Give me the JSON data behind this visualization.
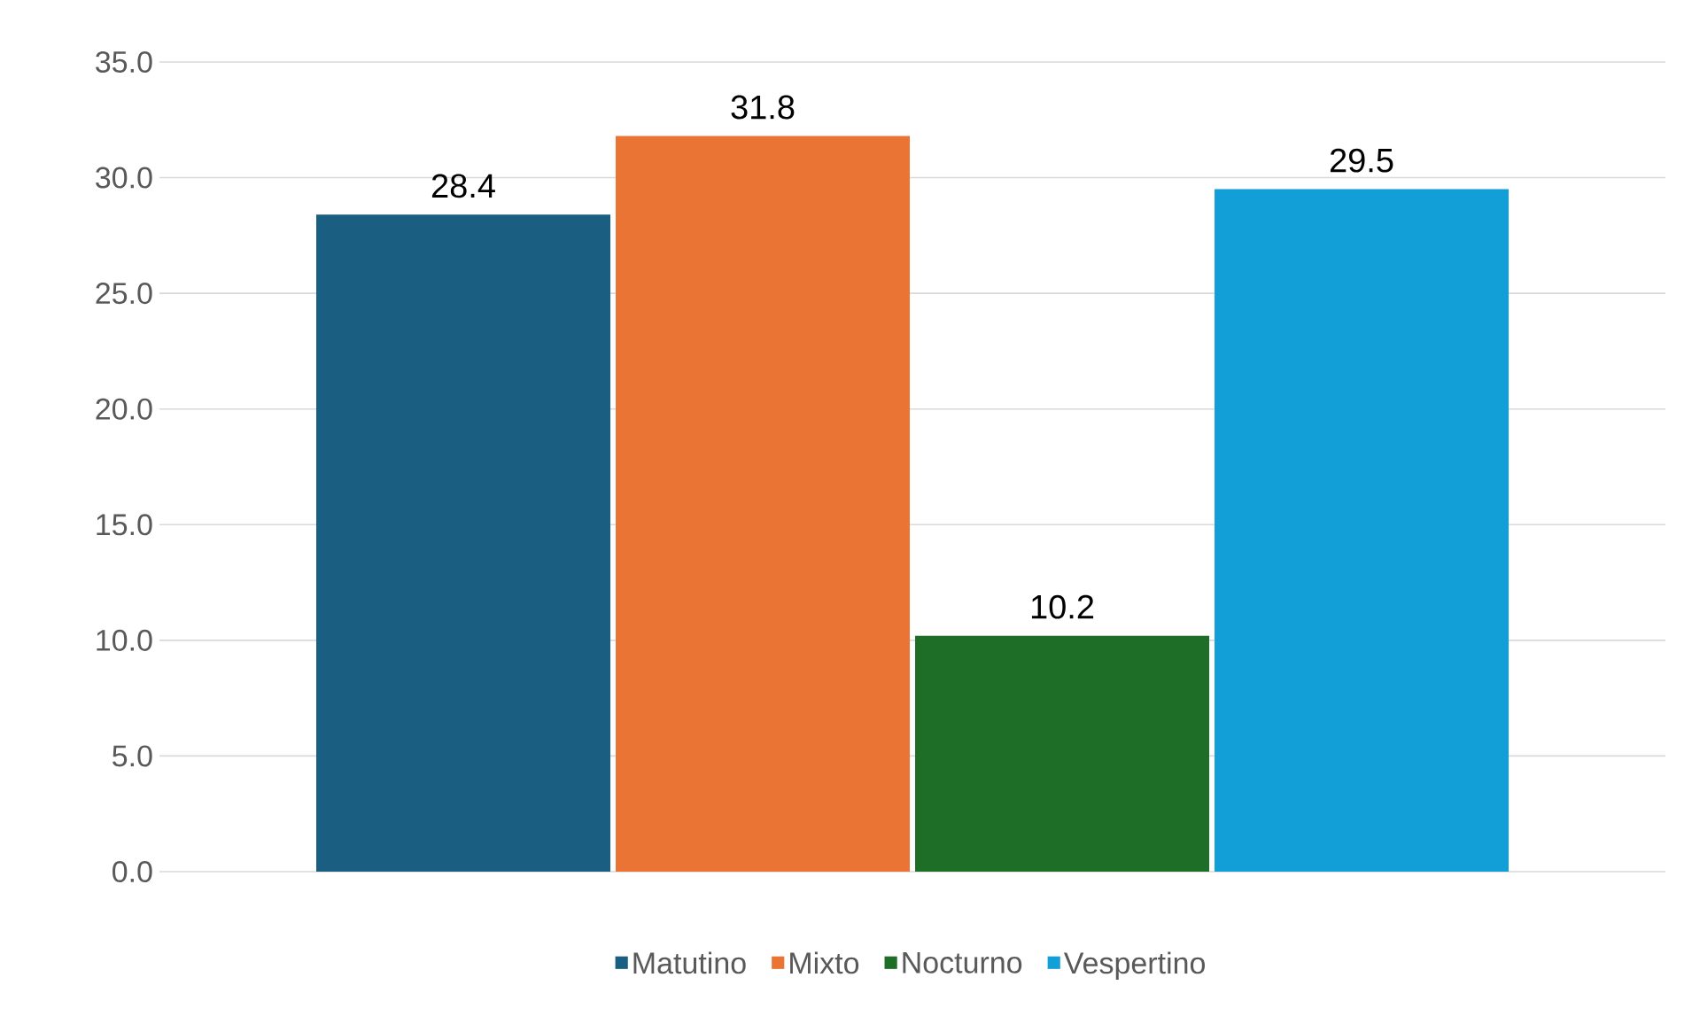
{
  "chart_data": {
    "type": "bar",
    "categories": [
      null
    ],
    "series": [
      {
        "name": "Matutino",
        "color": "#1a5f82",
        "values": [
          28.4
        ]
      },
      {
        "name": "Mixto",
        "color": "#e97434",
        "values": [
          31.8
        ]
      },
      {
        "name": "Nocturno",
        "color": "#1e6e28",
        "values": [
          10.2
        ]
      },
      {
        "name": "Vespertino",
        "color": "#129fd8",
        "values": [
          29.5
        ]
      }
    ],
    "ylim": [
      0,
      35
    ],
    "yticks": [
      {
        "value": 0,
        "label": "0.0"
      },
      {
        "value": 5,
        "label": "5.0"
      },
      {
        "value": 10,
        "label": "10.0"
      },
      {
        "value": 15,
        "label": "15.0"
      },
      {
        "value": 20,
        "label": "20.0"
      },
      {
        "value": 25,
        "label": "25.0"
      },
      {
        "value": 30,
        "label": "30.0"
      },
      {
        "value": 35,
        "label": "35.0"
      }
    ],
    "grid": "y",
    "legend": "bottom",
    "data_labels": true
  }
}
